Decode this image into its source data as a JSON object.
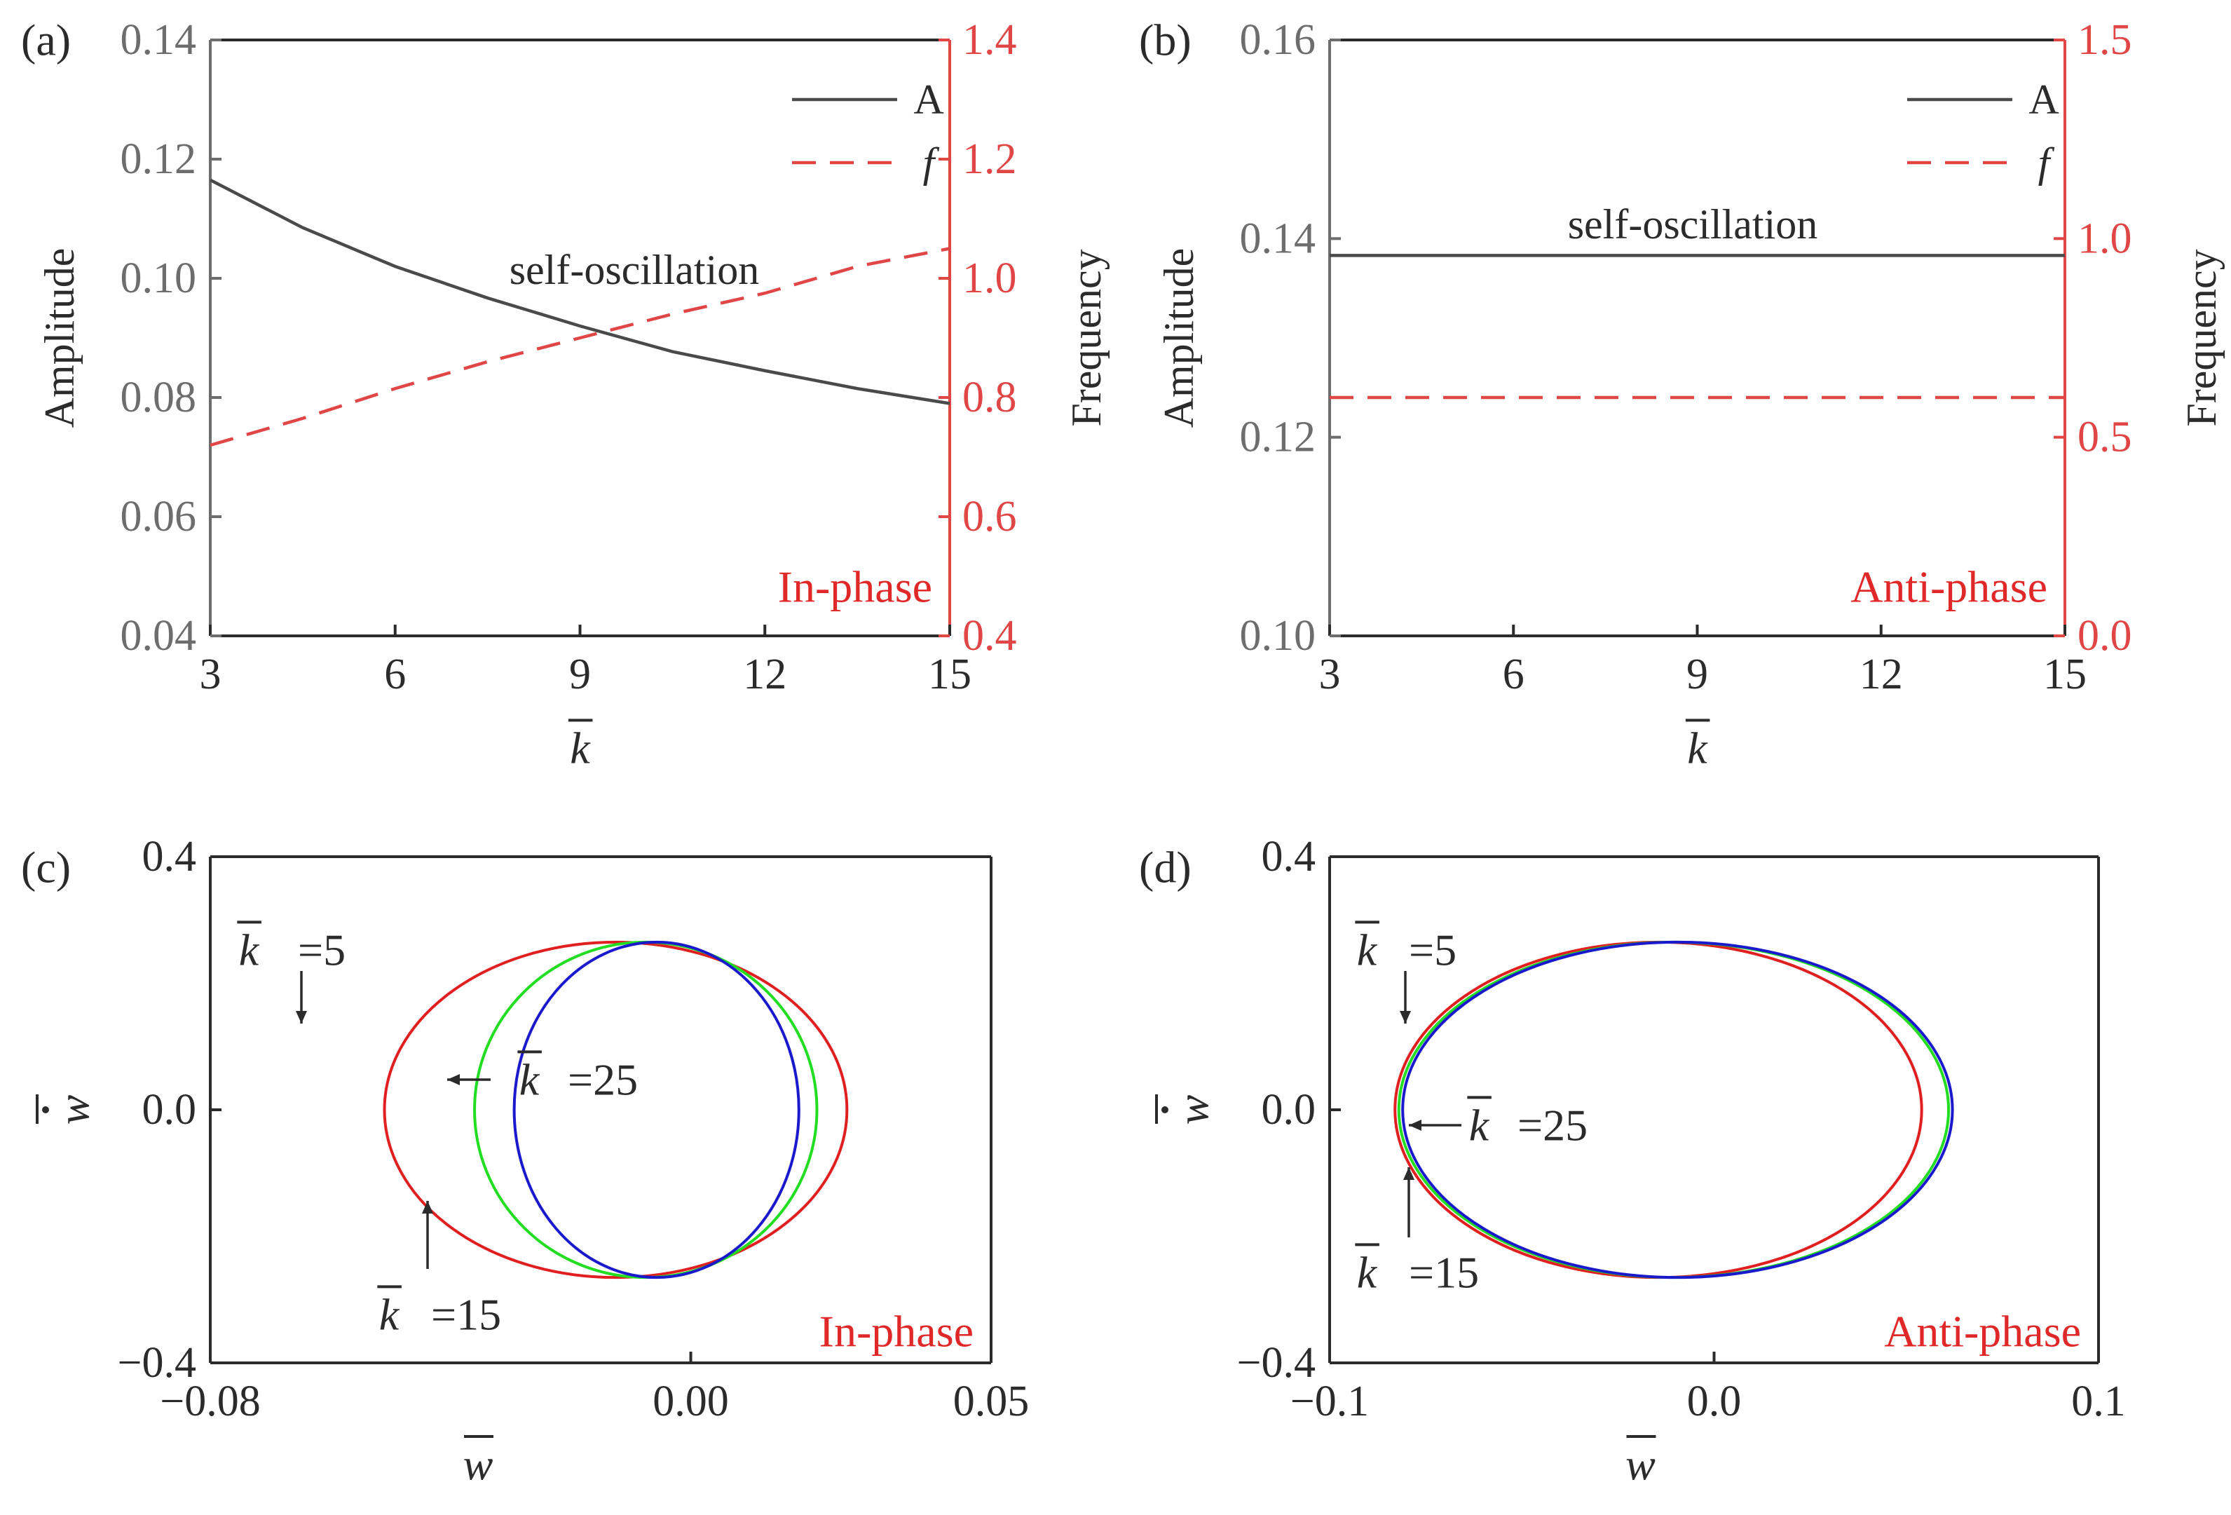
{
  "colors": {
    "axis": "#2b2b2b",
    "amplitude_axis": "#6d6d6d",
    "frequency_axis": "#e04646",
    "amplitude_line": "#4a4a4a",
    "frequency_line": "#e04646",
    "k5": "#e02020",
    "k15": "#22dd22",
    "k25": "#1a1acc",
    "phase_label": "#e02828"
  },
  "chart_data": [
    {
      "panel": "(a)",
      "type": "line",
      "xlabel": "k̄",
      "ylabel": "Amplitude",
      "y2label": "Frequency",
      "xlim": [
        3,
        15
      ],
      "ylim": [
        0.04,
        0.14
      ],
      "y2lim": [
        0.4,
        1.4
      ],
      "xticks": [
        "3",
        "6",
        "9",
        "12",
        "15"
      ],
      "yticks": [
        "0.04",
        "0.06",
        "0.08",
        "0.10",
        "0.12",
        "0.14"
      ],
      "y2ticks": [
        "0.4",
        "0.6",
        "0.8",
        "1.0",
        "1.2",
        "1.4"
      ],
      "legend": [
        "A",
        "f"
      ],
      "annotation": "self-oscillation",
      "phase_label": "In-phase",
      "series": [
        {
          "name": "A",
          "axis": "left",
          "style": "solid",
          "x": [
            3,
            4.5,
            6,
            7.5,
            9,
            10.5,
            12,
            13.5,
            15
          ],
          "y": [
            0.1165,
            0.1085,
            0.102,
            0.0967,
            0.092,
            0.0877,
            0.0845,
            0.0815,
            0.079
          ]
        },
        {
          "name": "f",
          "axis": "right",
          "style": "dashed",
          "x": [
            3,
            4.5,
            6,
            7.5,
            9,
            10.5,
            12,
            13.5,
            15
          ],
          "y": [
            0.72,
            0.765,
            0.815,
            0.86,
            0.9,
            0.94,
            0.975,
            1.02,
            1.05
          ]
        }
      ]
    },
    {
      "panel": "(b)",
      "type": "line",
      "xlabel": "k̄",
      "ylabel": "Amplitude",
      "y2label": "Frequency",
      "xlim": [
        3,
        15
      ],
      "ylim": [
        0.1,
        0.16
      ],
      "y2lim": [
        0.0,
        1.5
      ],
      "xticks": [
        "3",
        "6",
        "9",
        "12",
        "15"
      ],
      "yticks": [
        "0.10",
        "0.12",
        "0.14",
        "0.16"
      ],
      "y2ticks": [
        "0.0",
        "0.5",
        "1.0",
        "1.5"
      ],
      "legend": [
        "A",
        "f"
      ],
      "annotation": "self-oscillation",
      "phase_label": "Anti-phase",
      "series": [
        {
          "name": "A",
          "axis": "left",
          "style": "solid",
          "x": [
            3,
            15
          ],
          "y": [
            0.1383,
            0.1383
          ]
        },
        {
          "name": "f",
          "axis": "right",
          "style": "dashed",
          "x": [
            3,
            15
          ],
          "y": [
            0.6,
            0.6
          ]
        }
      ]
    },
    {
      "panel": "(c)",
      "type": "line",
      "subtype": "phase-portrait",
      "xlabel": "w̄",
      "ylabel": "ẇ̄",
      "xlim": [
        -0.08,
        0.05
      ],
      "ylim": [
        -0.4,
        0.4
      ],
      "xticks": [
        "−0.08",
        "0.00",
        "0.05"
      ],
      "yticks": [
        "0.4",
        "0.0",
        "−0.4"
      ],
      "phase_label": "In-phase",
      "series": [
        {
          "name": "k̄=5",
          "label_k": "k",
          "label_val": "=5",
          "color_key": "k5",
          "center": [
            -0.0125,
            0.0
          ],
          "semi_axes": [
            0.0385,
            0.265
          ]
        },
        {
          "name": "k̄=15",
          "label_k": "k",
          "label_val": "=15",
          "color_key": "k15",
          "center": [
            -0.0075,
            0.0
          ],
          "semi_axes": [
            0.0285,
            0.265
          ]
        },
        {
          "name": "k̄=25",
          "label_k": "k",
          "label_val": "=25",
          "color_key": "k25",
          "center": [
            -0.0057,
            0.0
          ],
          "semi_axes": [
            0.0237,
            0.265
          ]
        }
      ]
    },
    {
      "panel": "(d)",
      "type": "line",
      "subtype": "phase-portrait",
      "xlabel": "w̄",
      "ylabel": "ẇ̄",
      "xlim": [
        -0.1,
        0.1
      ],
      "ylim": [
        -0.4,
        0.4
      ],
      "xticks": [
        "−0.1",
        "0.0",
        "0.1"
      ],
      "yticks": [
        "0.4",
        "0.0",
        "−0.4"
      ],
      "phase_label": "Anti-phase",
      "series": [
        {
          "name": "k̄=5",
          "label_k": "k",
          "label_val": "=5",
          "color_key": "k5",
          "center": [
            -0.0145,
            0.0
          ],
          "semi_axes": [
            0.0685,
            0.265
          ]
        },
        {
          "name": "k̄=15",
          "label_k": "k",
          "label_val": "=15",
          "color_key": "k15",
          "center": [
            -0.0105,
            0.0
          ],
          "semi_axes": [
            0.0715,
            0.265
          ]
        },
        {
          "name": "k̄=25",
          "label_k": "k",
          "label_val": "=25",
          "color_key": "k25",
          "center": [
            -0.0095,
            0.0
          ],
          "semi_axes": [
            0.0715,
            0.265
          ]
        }
      ]
    }
  ]
}
